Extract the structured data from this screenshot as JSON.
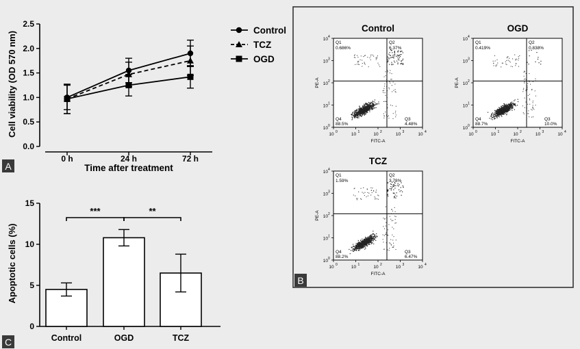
{
  "chart_data": [
    {
      "panel": "A",
      "type": "line",
      "xlabel": "Time after treatment",
      "ylabel": "Cell viability (OD 570 nm)",
      "categories": [
        "0 h",
        "24 h",
        "72 h"
      ],
      "ylim": [
        0,
        2.5
      ],
      "yticks": [
        "0.0",
        "0.5",
        "1.0",
        "1.5",
        "2.0",
        "2.5"
      ],
      "legend_position": "right",
      "series": [
        {
          "name": "Control",
          "marker": "circle",
          "line": "solid",
          "values": [
            1.0,
            1.55,
            1.9
          ],
          "errors": [
            0.25,
            0.25,
            0.27
          ]
        },
        {
          "name": "TCZ",
          "marker": "triangle",
          "line": "dashed",
          "values": [
            0.97,
            1.47,
            1.75
          ],
          "errors": [
            0.3,
            0.25,
            0.3
          ]
        },
        {
          "name": "OGD",
          "marker": "square",
          "line": "solid",
          "values": [
            0.97,
            1.25,
            1.42
          ],
          "errors": [
            0.3,
            0.22,
            0.23
          ]
        }
      ]
    },
    {
      "panel": "C",
      "type": "bar",
      "ylabel": "Apoptotic cells (%)",
      "categories": [
        "Control",
        "OGD",
        "TCZ"
      ],
      "values": [
        4.5,
        10.8,
        6.5
      ],
      "errors": [
        0.8,
        1.0,
        2.3
      ],
      "ylim": [
        0,
        15
      ],
      "yticks": [
        "0",
        "5",
        "10",
        "15"
      ],
      "significance": [
        {
          "from": 0,
          "to": 1,
          "label": "***"
        },
        {
          "from": 1,
          "to": 2,
          "label": "**"
        }
      ]
    },
    {
      "panel": "B",
      "type": "scatter",
      "xlabel": "FITC-A",
      "ylabel": "PE-A",
      "scale": "log",
      "tick_labels": [
        "10^0",
        "10^1",
        "10^2",
        "10^3",
        "10^4"
      ],
      "plots": [
        {
          "title": "Control",
          "quadrants": {
            "Q1": "0.686%",
            "Q2": "6.37%",
            "Q3": "4.48%",
            "Q4": "88.5%"
          }
        },
        {
          "title": "OGD",
          "quadrants": {
            "Q1": "0.419%",
            "Q2": "0.838%",
            "Q3": "10.0%",
            "Q4": "88.7%"
          }
        },
        {
          "title": "TCZ",
          "quadrants": {
            "Q1": "1.59%",
            "Q2": "3.78%",
            "Q3": "6.47%",
            "Q4": "88.2%"
          }
        }
      ]
    }
  ]
}
